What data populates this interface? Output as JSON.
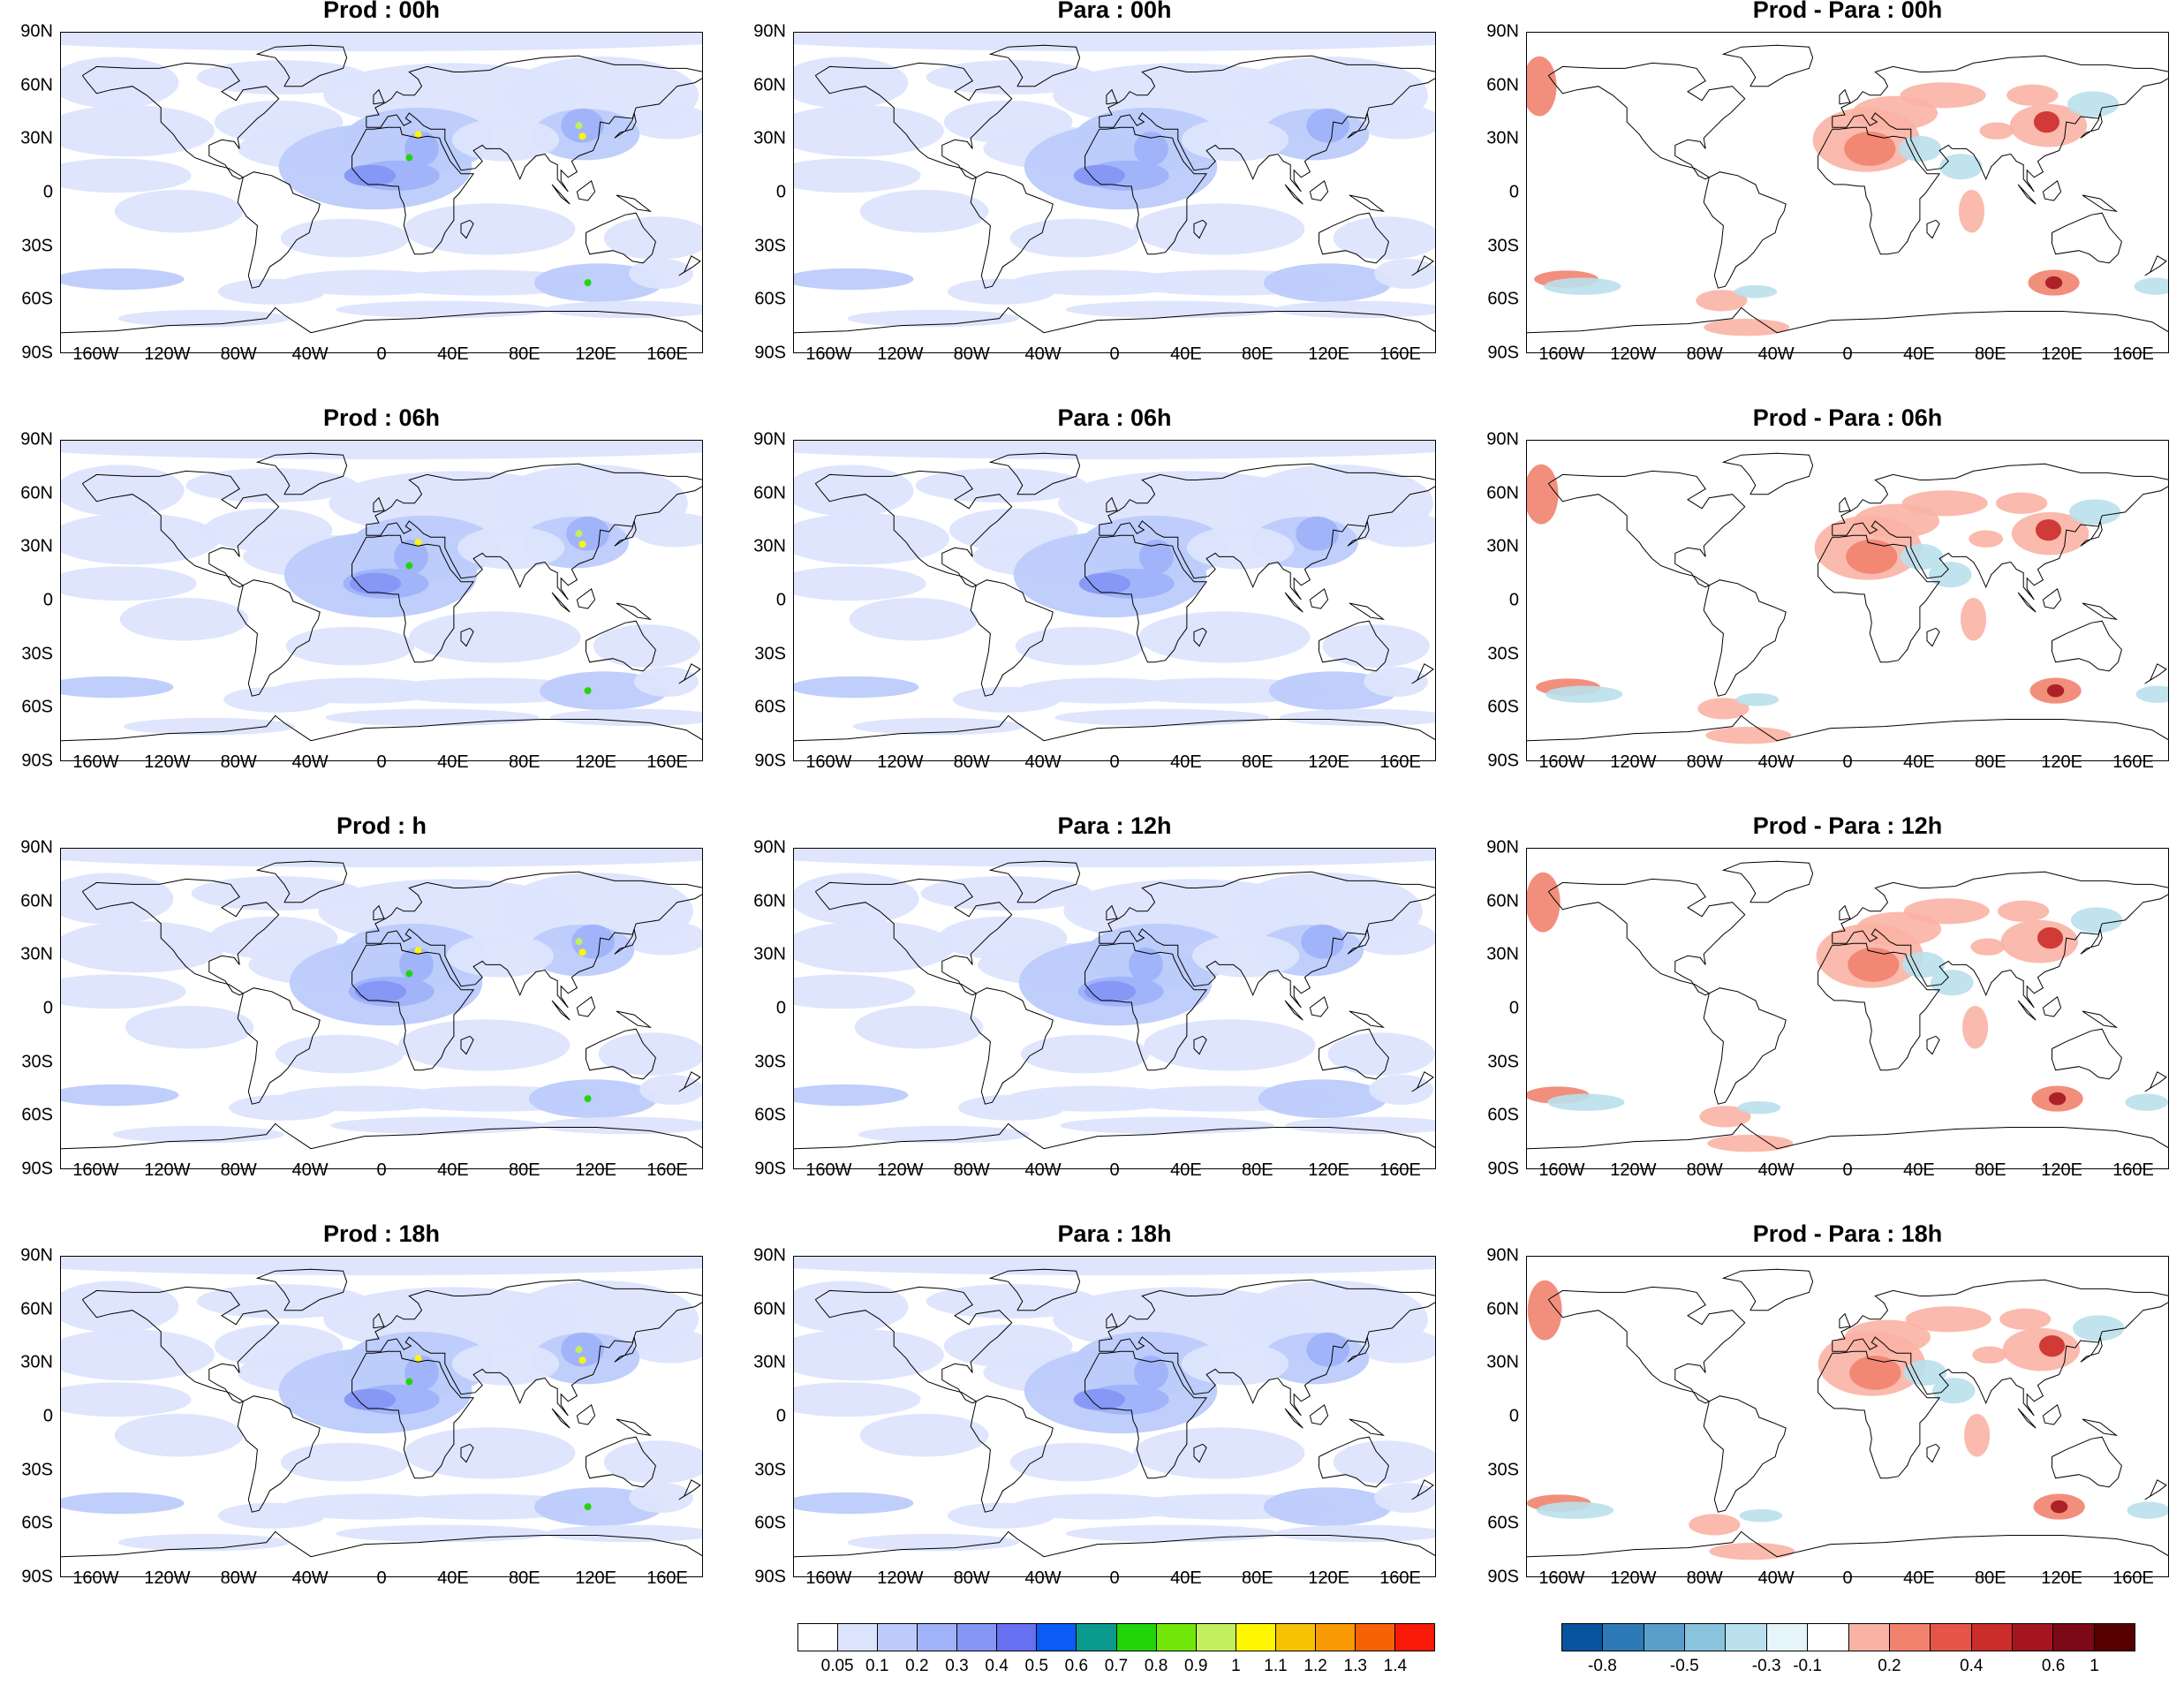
{
  "panels": [
    {
      "title": "Prod : 00h",
      "kind": "field"
    },
    {
      "title": "Para : 00h",
      "kind": "field"
    },
    {
      "title": "Prod - Para : 00h",
      "kind": "diff"
    },
    {
      "title": "Prod : 06h",
      "kind": "field"
    },
    {
      "title": "Para : 06h",
      "kind": "field"
    },
    {
      "title": "Prod - Para : 06h",
      "kind": "diff"
    },
    {
      "title": "Prod : h",
      "kind": "field"
    },
    {
      "title": "Para : 12h",
      "kind": "field"
    },
    {
      "title": "Prod - Para : 12h",
      "kind": "diff"
    },
    {
      "title": "Prod : 18h",
      "kind": "field"
    },
    {
      "title": "Para : 18h",
      "kind": "field"
    },
    {
      "title": "Prod - Para : 18h",
      "kind": "diff"
    }
  ],
  "lat_labels": [
    "90N",
    "60N",
    "30N",
    "0",
    "30S",
    "60S",
    "90S"
  ],
  "lon_labels": [
    "160W",
    "120W",
    "80W",
    "40W",
    "0",
    "40E",
    "80E",
    "120E",
    "160E"
  ],
  "field_colorbar": {
    "labels": [
      "0.05",
      "0.1",
      "0.2",
      "0.3",
      "0.4",
      "0.5",
      "0.6",
      "0.7",
      "0.8",
      "0.9",
      "1",
      "1.1",
      "1.2",
      "1.3",
      "1.4"
    ],
    "colors": [
      "#ffffff",
      "#dce4fd",
      "#bccbfb",
      "#9fb2fa",
      "#8596f5",
      "#6670f0",
      "#0a5cf5",
      "#0b9a8e",
      "#22d50a",
      "#72e80a",
      "#c2f05e",
      "#fef701",
      "#f7c104",
      "#fa9a06",
      "#f66205",
      "#f81a06"
    ]
  },
  "diff_colorbar": {
    "labels": [
      "-0.8",
      "-0.5",
      "-0.3",
      "-0.1",
      "0.2",
      "0.4",
      "0.6",
      "1"
    ],
    "colors": [
      "#08539e",
      "#2e7ab8",
      "#5a9fcb",
      "#8ac3dc",
      "#b9e0ec",
      "#e6f5fa",
      "#ffffff",
      "#f9b3a4",
      "#f1836e",
      "#e55648",
      "#cb2d2a",
      "#a5151f",
      "#7b0916",
      "#560000"
    ]
  }
}
